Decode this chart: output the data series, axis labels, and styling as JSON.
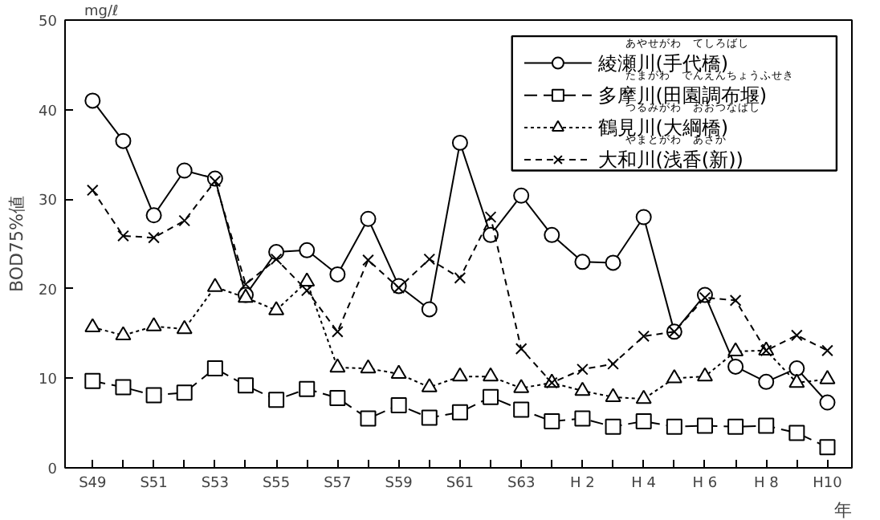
{
  "chart_data": {
    "type": "line",
    "ylabel": "BOD75%値",
    "xlabel": "年",
    "annotations": [
      "mg/ℓ",
      "あやせがわ　てしろばし",
      "たまがわ　でんえんちょうふせき",
      "つるみがわ　おおつなばし",
      "やまとがわ　あさか"
    ],
    "categories": [
      "S49",
      null,
      "S51",
      null,
      "S53",
      null,
      "S55",
      null,
      "S57",
      null,
      "S59",
      null,
      "S61",
      null,
      "S63",
      null,
      "H 2",
      null,
      "H 4",
      null,
      "H 6",
      null,
      "H 8",
      null,
      "H10"
    ],
    "ylim": [
      0,
      50
    ],
    "yticks": [
      0,
      10,
      20,
      30,
      40,
      50
    ],
    "grid": false,
    "legend": "top right",
    "series": [
      {
        "name": "綾瀬川(手代橋)",
        "color": "#000000",
        "marker": "circle",
        "line_style": "solid",
        "values": [
          41,
          36.5,
          28.2,
          33.2,
          32.3,
          19.3,
          24.1,
          24.3,
          21.6,
          27.8,
          20.3,
          17.7,
          36.3,
          26,
          30.4,
          26,
          23,
          22.9,
          28,
          15.2,
          19.3,
          11.3,
          9.6,
          11.1,
          7.3
        ]
      },
      {
        "name": "多摩川(田園調布堰)",
        "color": "#000000",
        "marker": "square",
        "line_style": "dashed",
        "values": [
          9.7,
          9.0,
          8.1,
          8.4,
          11.1,
          9.2,
          7.6,
          8.8,
          7.8,
          5.5,
          7.0,
          5.6,
          6.2,
          7.9,
          6.5,
          5.2,
          5.5,
          4.6,
          5.2,
          4.6,
          4.7,
          4.6,
          4.7,
          3.9,
          2.3
        ]
      },
      {
        "name": "鶴見川(大綱橋)",
        "color": "#000000",
        "marker": "triangle",
        "line_style": "dotted",
        "values": [
          15.7,
          14.8,
          15.8,
          15.5,
          20.2,
          19.0,
          17.6,
          20.8,
          11.2,
          11.1,
          10.5,
          9.0,
          10.2,
          10.2,
          8.9,
          9.5,
          8.6,
          7.9,
          7.7,
          10.0,
          10.2,
          13.0,
          13.1,
          9.5,
          9.9
        ]
      },
      {
        "name": "大和川(浅香(新))",
        "color": "#000000",
        "marker": "cross",
        "line_style": "dashed",
        "values": [
          31,
          25.9,
          25.7,
          27.6,
          32,
          20.5,
          23.3,
          19.8,
          15.2,
          23.2,
          20.1,
          23.3,
          21.2,
          28,
          13.3,
          9.5,
          11,
          11.6,
          14.7,
          15.2,
          19,
          18.7,
          13.1,
          14.8,
          13.1
        ]
      }
    ]
  }
}
